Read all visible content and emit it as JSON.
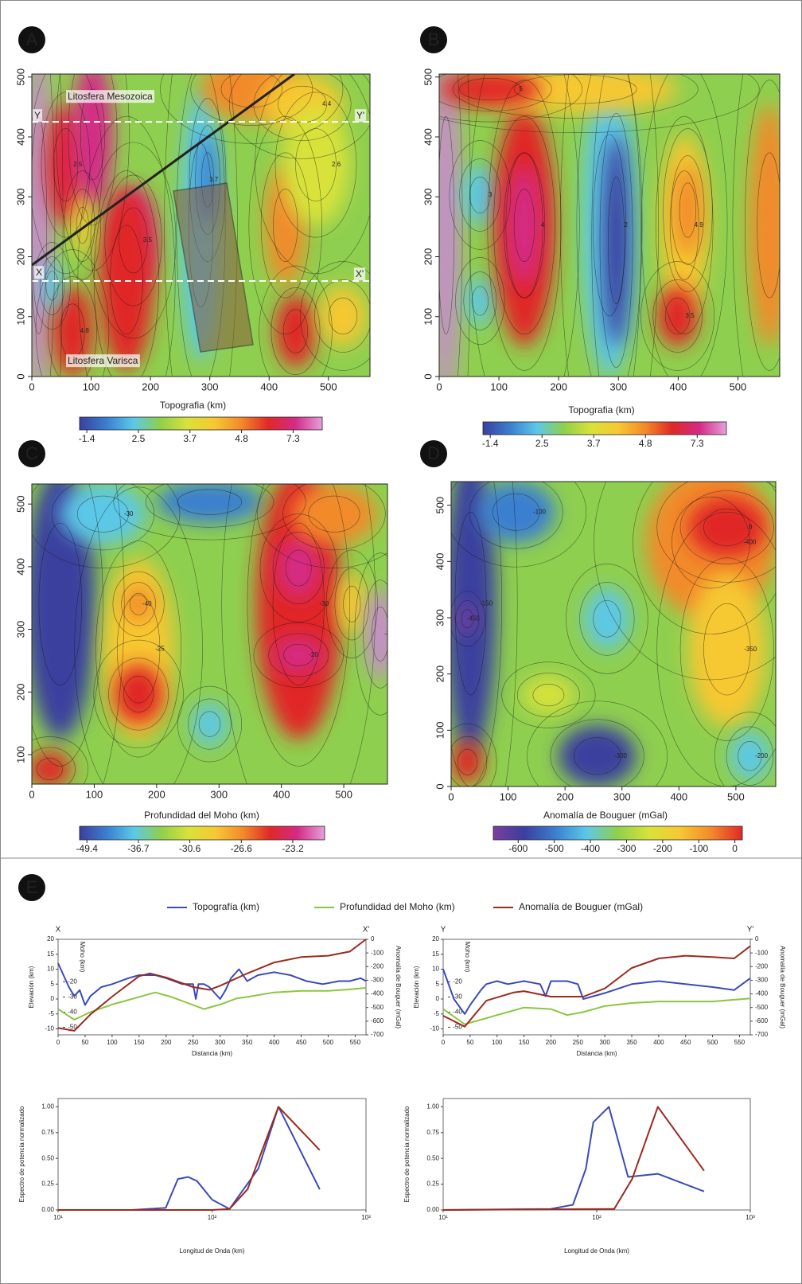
{
  "chart_data": [
    {
      "type": "map",
      "panel": "A",
      "xlabel": "Topografia (km)",
      "xlim": [
        0,
        570
      ],
      "ylim": [
        0,
        505
      ],
      "xticks": [
        0,
        100,
        200,
        300,
        400,
        500
      ],
      "yticks": [
        0,
        100,
        200,
        300,
        400,
        500
      ],
      "colorbar_ticks": [
        -1.4,
        2.5,
        3.7,
        4.8,
        7.3
      ],
      "colormap": [
        "#3b3f9e",
        "#3a7fd0",
        "#5cc8e8",
        "#8fd04a",
        "#d8e23a",
        "#f6c832",
        "#f28a2a",
        "#e02828",
        "#d42a86",
        "#e6a0dc"
      ],
      "annotations": [
        "Litosfera Mesozoica",
        "Litosfera Varisca",
        "Y",
        "Y'",
        "X",
        "X'"
      ],
      "contour_labels": [
        2.5,
        3.5,
        4.8,
        3.7,
        4.4,
        2.6
      ]
    },
    {
      "type": "map",
      "panel": "B",
      "xlabel": "Topografia (km)",
      "xlim": [
        0,
        570
      ],
      "ylim": [
        0,
        505
      ],
      "xticks": [
        0,
        100,
        200,
        300,
        400,
        500
      ],
      "yticks": [
        0,
        100,
        200,
        300,
        400,
        500
      ],
      "colorbar_ticks": [
        -1.4,
        2.5,
        3.7,
        4.8,
        7.3
      ],
      "colormap": [
        "#3b3f9e",
        "#3a7fd0",
        "#5cc8e8",
        "#8fd04a",
        "#d8e23a",
        "#f6c832",
        "#f28a2a",
        "#e02828",
        "#d42a86",
        "#e6a0dc"
      ],
      "contour_labels": [
        3.0,
        4.0,
        2.0,
        4.9,
        3.5,
        5.0
      ]
    },
    {
      "type": "map",
      "panel": "C",
      "xlabel": "Profundidad del Moho (km)",
      "xlim": [
        0,
        570
      ],
      "ylim": [
        53,
        532
      ],
      "xticks": [
        0,
        100,
        200,
        300,
        400,
        500
      ],
      "yticks": [
        100,
        200,
        300,
        400,
        500
      ],
      "colorbar_ticks": [
        -49.4,
        -36.7,
        -30.6,
        -26.6,
        -23.2
      ],
      "colormap": [
        "#3b3f9e",
        "#3a7fd0",
        "#5cc8e8",
        "#8fd04a",
        "#d8e23a",
        "#f6c832",
        "#f28a2a",
        "#e02828",
        "#d42a86",
        "#e6a0dc"
      ],
      "contour_labels": [
        -30,
        -25,
        -40,
        -30,
        -20,
        -35
      ]
    },
    {
      "type": "map",
      "panel": "D",
      "xlabel": "Anomalía de Bouguer (mGal)",
      "xlim": [
        0,
        570
      ],
      "ylim": [
        0,
        542
      ],
      "xticks": [
        0,
        100,
        200,
        300,
        400,
        500
      ],
      "yticks": [
        0,
        100,
        200,
        300,
        400,
        500
      ],
      "colorbar_ticks": [
        -600,
        -500,
        -400,
        -300,
        -200,
        -100,
        0
      ],
      "colormap": [
        "#7a3e9e",
        "#3b3f9e",
        "#3a7fd0",
        "#5cc8e8",
        "#8fd04a",
        "#d8e23a",
        "#f6c832",
        "#f28a2a",
        "#e02828"
      ],
      "contour_labels": [
        -450,
        -400,
        -350,
        -300,
        -200,
        -150,
        -100,
        0
      ]
    },
    {
      "type": "profile",
      "panel": "E",
      "start_label": "X",
      "end_label": "X'",
      "xlabel": "Distancia (km)",
      "ylabel": "Elevación (km)",
      "y3label": "Moho (km)",
      "y2label": "Anomalía de Bouguer (mGal)",
      "xlim": [
        0,
        570
      ],
      "xticks": [
        0,
        50,
        100,
        150,
        200,
        250,
        300,
        350,
        400,
        450,
        500,
        550
      ],
      "ylim": [
        -12,
        20
      ],
      "yticks": [
        -10,
        -5,
        0,
        5,
        10,
        15,
        20
      ],
      "y3lim": [
        -55,
        8
      ],
      "y3ticks": [
        -20,
        -30,
        -40,
        -50
      ],
      "y2lim": [
        -700,
        0
      ],
      "y2ticks": [
        0,
        -100,
        -200,
        -300,
        -400,
        -500,
        -600,
        -700
      ],
      "series": [
        {
          "name": "Topografía (km)",
          "color": "#3b4bb8",
          "x": [
            0,
            10,
            20,
            30,
            40,
            50,
            60,
            80,
            100,
            130,
            150,
            180,
            200,
            230,
            250,
            255,
            260,
            270,
            280,
            290,
            300,
            310,
            320,
            335,
            350,
            370,
            400,
            430,
            460,
            490,
            520,
            540,
            560,
            570
          ],
          "values": [
            12,
            8,
            4,
            1,
            3,
            -2,
            1,
            4,
            5,
            7,
            8,
            8,
            7,
            5,
            5,
            0,
            5,
            5,
            4,
            2,
            0,
            3,
            7,
            10,
            6,
            8,
            9,
            8,
            6,
            5,
            6,
            6,
            7,
            6
          ]
        },
        {
          "name": "Profundidad del Moho (km)",
          "color": "#8cc63f",
          "axis": "y3",
          "x": [
            0,
            30,
            60,
            100,
            140,
            180,
            210,
            240,
            270,
            300,
            330,
            350,
            400,
            450,
            500,
            540,
            570
          ],
          "values": [
            -38,
            -45,
            -40,
            -35,
            -31,
            -27,
            -30,
            -34,
            -38,
            -35,
            -31,
            -30,
            -27,
            -26,
            -26,
            -25,
            -24
          ]
        },
        {
          "name": "Anomalía de Bouguer (mGal)",
          "color": "#9b2a1f",
          "axis": "y2",
          "x": [
            0,
            30,
            60,
            100,
            150,
            170,
            200,
            250,
            280,
            300,
            350,
            400,
            450,
            500,
            540,
            570
          ],
          "values": [
            -650,
            -670,
            -550,
            -420,
            -270,
            -250,
            -280,
            -350,
            -370,
            -340,
            -250,
            -170,
            -130,
            -120,
            -90,
            0
          ]
        }
      ]
    },
    {
      "type": "profile",
      "start_label": "Y",
      "end_label": "Y'",
      "xlabel": "Distancia (km)",
      "ylabel": "Elevación (km)",
      "y3label": "Moho (km)",
      "y2label": "Anomalía de Bouguer (mGal)",
      "xlim": [
        0,
        570
      ],
      "xticks": [
        0,
        50,
        100,
        150,
        200,
        250,
        300,
        350,
        400,
        450,
        500,
        550
      ],
      "ylim": [
        -12,
        20
      ],
      "yticks": [
        -10,
        -5,
        0,
        5,
        10,
        15,
        20
      ],
      "y3lim": [
        -55,
        8
      ],
      "y3ticks": [
        -20,
        -30,
        -40,
        -50
      ],
      "y2lim": [
        -700,
        0
      ],
      "y2ticks": [
        0,
        -100,
        -200,
        -300,
        -400,
        -500,
        -600,
        -700
      ],
      "series": [
        {
          "color": "#3b4bb8",
          "x": [
            0,
            20,
            40,
            50,
            70,
            80,
            100,
            120,
            150,
            180,
            190,
            200,
            230,
            250,
            260,
            300,
            350,
            400,
            450,
            500,
            540,
            570
          ],
          "values": [
            10,
            0,
            -5,
            -2,
            3,
            5,
            6,
            5,
            6,
            5,
            1,
            6,
            6,
            5,
            0,
            2,
            5,
            6,
            5,
            4,
            3,
            7
          ]
        },
        {
          "color": "#8cc63f",
          "axis": "y3",
          "x": [
            0,
            40,
            70,
            100,
            150,
            200,
            230,
            260,
            300,
            350,
            400,
            450,
            500,
            570
          ],
          "values": [
            -38,
            -48,
            -45,
            -42,
            -37,
            -38,
            -42,
            -40,
            -36,
            -34,
            -33,
            -33,
            -33,
            -31
          ]
        },
        {
          "color": "#9b2a1f",
          "axis": "y2",
          "x": [
            0,
            40,
            80,
            130,
            150,
            200,
            260,
            300,
            350,
            400,
            450,
            500,
            540,
            570
          ],
          "values": [
            -560,
            -640,
            -450,
            -390,
            -380,
            -420,
            -420,
            -360,
            -210,
            -140,
            -120,
            -130,
            -140,
            -50
          ]
        }
      ]
    },
    {
      "type": "spectrum",
      "xlabel": "Longitud de Onda (km)",
      "ylabel": "Espectro de potencia normalizado",
      "xscale": "log",
      "xlim": [
        10,
        1000
      ],
      "xticks": [
        {
          "value": 10,
          "label": "10¹"
        },
        {
          "value": 100,
          "label": "10²"
        },
        {
          "value": 1000,
          "label": "10³"
        }
      ],
      "ylim": [
        0,
        1.08
      ],
      "yticks": [
        {
          "value": 0,
          "label": "0.00"
        },
        0.25,
        {
          "value": 0.5,
          "label": "0.50"
        },
        0.75,
        {
          "value": 1,
          "label": "1.00"
        }
      ],
      "series": [
        {
          "color": "#3b4bb8",
          "x": [
            10,
            30,
            50,
            60,
            70,
            80,
            100,
            130,
            200,
            270,
            500
          ],
          "values": [
            0,
            0,
            0.02,
            0.3,
            0.32,
            0.28,
            0.1,
            0.01,
            0.4,
            1.0,
            0.2
          ]
        },
        {
          "color": "#9b2a1f",
          "x": [
            10,
            100,
            130,
            170,
            270,
            500
          ],
          "values": [
            0,
            0,
            0.01,
            0.2,
            1.0,
            0.58
          ]
        }
      ]
    },
    {
      "type": "spectrum",
      "xlabel": "Longitud de Onda (km)",
      "ylabel": "Espectro de potencia normalizado",
      "xscale": "log",
      "xlim": [
        10,
        1000
      ],
      "xticks": [
        {
          "value": 10,
          "label": "10¹"
        },
        {
          "value": 100,
          "label": "10²"
        },
        {
          "value": 1000,
          "label": "10³"
        }
      ],
      "ylim": [
        0,
        1.08
      ],
      "yticks": [
        {
          "value": 0,
          "label": "0.00"
        },
        0.25,
        {
          "value": 0.5,
          "label": "0.50"
        },
        0.75,
        {
          "value": 1,
          "label": "1.00"
        }
      ],
      "series": [
        {
          "color": "#3b4bb8",
          "x": [
            10,
            50,
            70,
            85,
            95,
            120,
            160,
            250,
            500
          ],
          "values": [
            0,
            0.01,
            0.05,
            0.4,
            0.85,
            1.0,
            0.32,
            0.35,
            0.18
          ]
        },
        {
          "color": "#9b2a1f",
          "x": [
            10,
            130,
            170,
            250,
            500
          ],
          "values": [
            0,
            0.01,
            0.3,
            1.0,
            0.38
          ]
        }
      ]
    }
  ]
}
